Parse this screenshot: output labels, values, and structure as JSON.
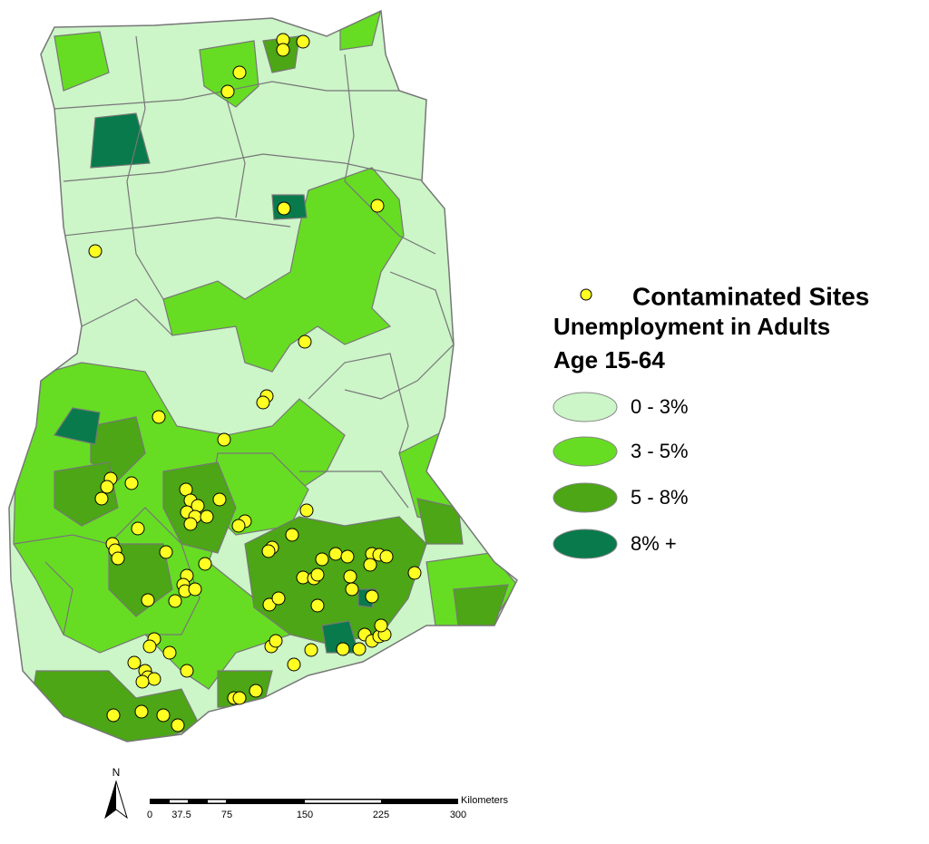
{
  "legend": {
    "sites_label": "Contaminated Sites",
    "title_lines": [
      "Unemployment in Adults",
      "Age 15-64"
    ],
    "classes": [
      "0 - 3%",
      "3 - 5%",
      "5 - 8%",
      "8% +"
    ]
  },
  "north_arrow": "N",
  "scale_bar": {
    "unit": "Kilometers",
    "labels": [
      "0",
      "37.5",
      "75",
      "150",
      "225",
      "300"
    ]
  }
}
